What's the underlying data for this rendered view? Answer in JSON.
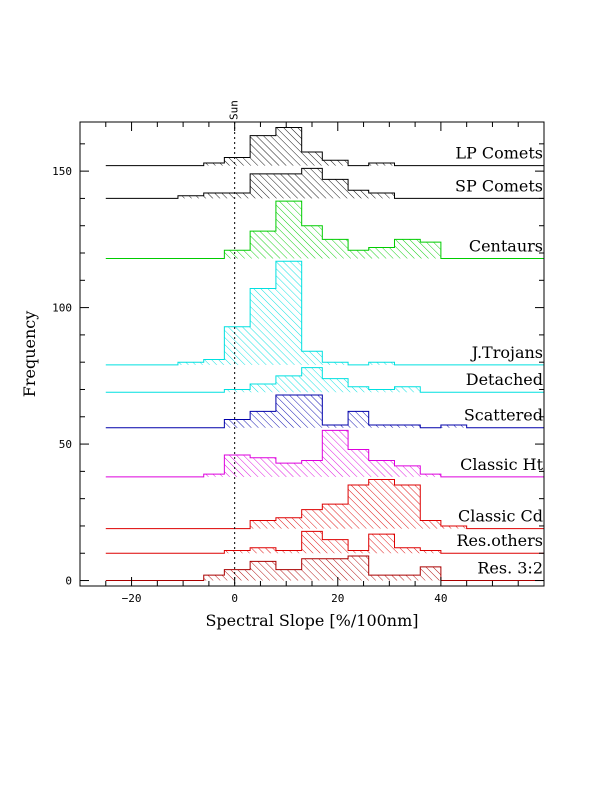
{
  "chart_data": {
    "type": "histogram-stack",
    "xlabel": "Spectral Slope [%/100nm]",
    "ylabel": "Frequency",
    "xlim": [
      -30,
      60
    ],
    "ylim": [
      -2,
      168
    ],
    "xticks": [
      -20,
      0,
      20,
      40
    ],
    "yticks": [
      0,
      50,
      100,
      150
    ],
    "reference_line": {
      "x": 0,
      "label": "Sun"
    },
    "series": [
      {
        "name": "LP Comets",
        "color": "#000000",
        "base": 152,
        "steps": [
          [
            -25,
            152
          ],
          [
            -6,
            153
          ],
          [
            -2,
            155
          ],
          [
            3,
            163
          ],
          [
            8,
            166
          ],
          [
            13,
            157
          ],
          [
            17,
            154
          ],
          [
            22,
            152
          ],
          [
            26,
            153
          ],
          [
            31,
            152
          ],
          [
            60,
            152
          ]
        ]
      },
      {
        "name": "SP Comets",
        "color": "#000000",
        "base": 140,
        "steps": [
          [
            -25,
            140
          ],
          [
            -11,
            141
          ],
          [
            -6,
            142
          ],
          [
            3,
            149
          ],
          [
            8,
            149
          ],
          [
            13,
            151
          ],
          [
            17,
            147
          ],
          [
            22,
            143
          ],
          [
            26,
            142
          ],
          [
            31,
            140
          ],
          [
            60,
            140
          ]
        ]
      },
      {
        "name": "Centaurs",
        "color": "#00cc00",
        "base": 118,
        "steps": [
          [
            -25,
            118
          ],
          [
            -2,
            121
          ],
          [
            3,
            128
          ],
          [
            8,
            139
          ],
          [
            13,
            130
          ],
          [
            17,
            125
          ],
          [
            22,
            121
          ],
          [
            26,
            122
          ],
          [
            31,
            125
          ],
          [
            36,
            124
          ],
          [
            40,
            118
          ],
          [
            60,
            118
          ]
        ]
      },
      {
        "name": "J.Trojans",
        "color": "#00e0e0",
        "base": 79,
        "steps": [
          [
            -25,
            79
          ],
          [
            -11,
            80
          ],
          [
            -6,
            81
          ],
          [
            -2,
            93
          ],
          [
            3,
            107
          ],
          [
            8,
            117
          ],
          [
            13,
            84
          ],
          [
            17,
            80
          ],
          [
            22,
            79
          ],
          [
            26,
            80
          ],
          [
            31,
            79
          ],
          [
            60,
            79
          ]
        ]
      },
      {
        "name": "Detached",
        "color": "#00e0e0",
        "base": 69,
        "steps": [
          [
            -25,
            69
          ],
          [
            -2,
            70
          ],
          [
            3,
            72
          ],
          [
            8,
            75
          ],
          [
            13,
            78
          ],
          [
            17,
            74
          ],
          [
            22,
            71
          ],
          [
            26,
            70
          ],
          [
            31,
            71
          ],
          [
            36,
            69
          ],
          [
            60,
            69
          ]
        ]
      },
      {
        "name": "Scattered",
        "color": "#0000aa",
        "base": 56,
        "steps": [
          [
            -25,
            56
          ],
          [
            -2,
            59
          ],
          [
            3,
            62
          ],
          [
            8,
            68
          ],
          [
            17,
            57
          ],
          [
            22,
            62
          ],
          [
            26,
            57
          ],
          [
            36,
            56
          ],
          [
            40,
            57
          ],
          [
            45,
            56
          ],
          [
            60,
            56
          ]
        ]
      },
      {
        "name": "Classic Ht",
        "color": "#dd00dd",
        "base": 38,
        "steps": [
          [
            -25,
            38
          ],
          [
            -6,
            39
          ],
          [
            -2,
            46
          ],
          [
            3,
            45
          ],
          [
            8,
            43
          ],
          [
            13,
            44
          ],
          [
            17,
            55
          ],
          [
            22,
            48
          ],
          [
            26,
            44
          ],
          [
            31,
            42
          ],
          [
            36,
            39
          ],
          [
            40,
            38
          ],
          [
            60,
            38
          ]
        ]
      },
      {
        "name": "Classic Cd",
        "color": "#dd0000",
        "base": 19,
        "steps": [
          [
            -25,
            19
          ],
          [
            3,
            22
          ],
          [
            8,
            23
          ],
          [
            13,
            26
          ],
          [
            17,
            28
          ],
          [
            22,
            35
          ],
          [
            26,
            37
          ],
          [
            31,
            35
          ],
          [
            36,
            22
          ],
          [
            40,
            20
          ],
          [
            45,
            19
          ],
          [
            60,
            19
          ]
        ]
      },
      {
        "name": "Res.others",
        "color": "#dd0000",
        "base": 10,
        "steps": [
          [
            -25,
            10
          ],
          [
            -2,
            11
          ],
          [
            3,
            12
          ],
          [
            8,
            11
          ],
          [
            13,
            18
          ],
          [
            17,
            15
          ],
          [
            22,
            11
          ],
          [
            26,
            17
          ],
          [
            31,
            12
          ],
          [
            36,
            11
          ],
          [
            40,
            10
          ],
          [
            60,
            10
          ]
        ]
      },
      {
        "name": "Res. 3:2",
        "color": "#aa0000",
        "base": 0,
        "steps": [
          [
            -25,
            0
          ],
          [
            -6,
            2
          ],
          [
            -2,
            4
          ],
          [
            3,
            7
          ],
          [
            8,
            4
          ],
          [
            13,
            8
          ],
          [
            22,
            9
          ],
          [
            26,
            2
          ],
          [
            31,
            2
          ],
          [
            36,
            5
          ],
          [
            40,
            0
          ],
          [
            60,
            0
          ]
        ]
      }
    ]
  }
}
